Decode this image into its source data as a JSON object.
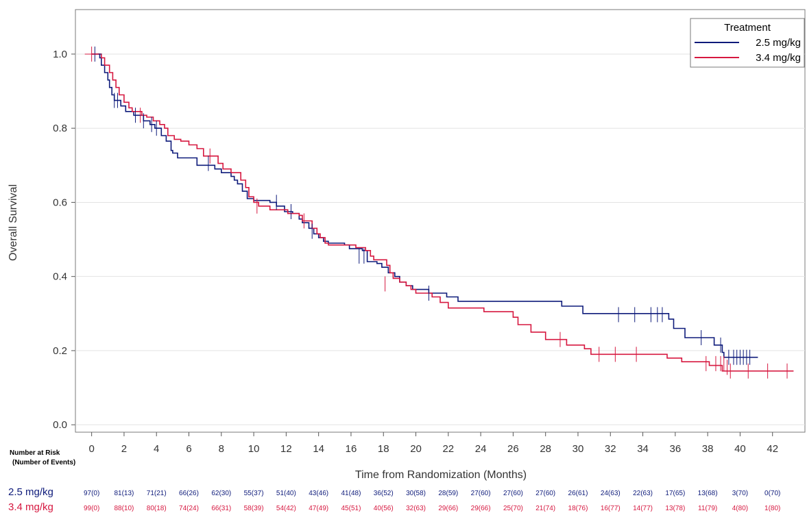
{
  "chart_data": {
    "type": "line",
    "xlabel": "Time from Randomization (Months)",
    "ylabel": "Overall Survival",
    "xlim": [
      -1,
      44
    ],
    "ylim": [
      -0.02,
      1.12
    ],
    "x_ticks": [
      0,
      2,
      4,
      6,
      8,
      10,
      12,
      14,
      16,
      18,
      20,
      22,
      24,
      26,
      28,
      30,
      32,
      34,
      36,
      38,
      40,
      42
    ],
    "y_ticks": [
      0.0,
      0.2,
      0.4,
      0.6,
      0.8,
      1.0
    ],
    "y_tick_labels": [
      "0.0",
      "0.2",
      "0.4",
      "0.6",
      "0.8",
      "1.0"
    ],
    "grid": "horizontal",
    "legend": {
      "title": "Treatment",
      "placement": "top-right"
    },
    "series": [
      {
        "name": "2.5 mg/kg",
        "color": "#0d1a7a",
        "steps": [
          [
            0,
            1.0
          ],
          [
            0.4,
            1.0
          ],
          [
            0.5,
            0.99
          ],
          [
            0.6,
            0.97
          ],
          [
            0.8,
            0.95
          ],
          [
            1.0,
            0.93
          ],
          [
            1.1,
            0.91
          ],
          [
            1.25,
            0.89
          ],
          [
            1.4,
            0.875
          ],
          [
            1.8,
            0.86
          ],
          [
            2.1,
            0.845
          ],
          [
            2.6,
            0.835
          ],
          [
            3.2,
            0.82
          ],
          [
            3.6,
            0.81
          ],
          [
            3.9,
            0.8
          ],
          [
            4.3,
            0.78
          ],
          [
            4.6,
            0.765
          ],
          [
            4.9,
            0.74
          ],
          [
            5.0,
            0.733
          ],
          [
            5.3,
            0.72
          ],
          [
            6.5,
            0.7
          ],
          [
            7.6,
            0.69
          ],
          [
            8.0,
            0.68
          ],
          [
            8.6,
            0.67
          ],
          [
            8.8,
            0.66
          ],
          [
            9.0,
            0.65
          ],
          [
            9.3,
            0.63
          ],
          [
            9.6,
            0.61
          ],
          [
            10.0,
            0.605
          ],
          [
            11.0,
            0.6
          ],
          [
            11.4,
            0.59
          ],
          [
            11.9,
            0.575
          ],
          [
            12.4,
            0.57
          ],
          [
            12.8,
            0.555
          ],
          [
            13.0,
            0.545
          ],
          [
            13.4,
            0.53
          ],
          [
            13.7,
            0.515
          ],
          [
            14.0,
            0.505
          ],
          [
            14.3,
            0.495
          ],
          [
            14.6,
            0.49
          ],
          [
            15.6,
            0.485
          ],
          [
            15.9,
            0.475
          ],
          [
            16.7,
            0.47
          ],
          [
            17.0,
            0.44
          ],
          [
            17.6,
            0.435
          ],
          [
            17.9,
            0.425
          ],
          [
            18.3,
            0.41
          ],
          [
            18.7,
            0.4
          ],
          [
            19.0,
            0.385
          ],
          [
            19.4,
            0.375
          ],
          [
            19.8,
            0.365
          ],
          [
            20.8,
            0.355
          ],
          [
            21.9,
            0.345
          ],
          [
            22.6,
            0.333
          ],
          [
            29.0,
            0.32
          ],
          [
            30.3,
            0.3
          ],
          [
            35.6,
            0.285
          ],
          [
            35.9,
            0.26
          ],
          [
            36.6,
            0.235
          ],
          [
            38.4,
            0.215
          ],
          [
            38.9,
            0.195
          ],
          [
            39.0,
            0.182
          ],
          [
            41.1,
            0.182
          ]
        ],
        "censors": [
          [
            0.2,
            1.0
          ],
          [
            1.4,
            0.875
          ],
          [
            1.6,
            0.875
          ],
          [
            2.7,
            0.835
          ],
          [
            3.2,
            0.82
          ],
          [
            3.7,
            0.81
          ],
          [
            4.0,
            0.8
          ],
          [
            7.2,
            0.705
          ],
          [
            11.4,
            0.6
          ],
          [
            12.3,
            0.575
          ],
          [
            13.6,
            0.522
          ],
          [
            16.5,
            0.455
          ],
          [
            16.8,
            0.455
          ],
          [
            20.8,
            0.355
          ],
          [
            32.5,
            0.297
          ],
          [
            33.5,
            0.297
          ],
          [
            34.5,
            0.297
          ],
          [
            34.9,
            0.297
          ],
          [
            35.2,
            0.297
          ],
          [
            37.6,
            0.235
          ],
          [
            38.8,
            0.215
          ],
          [
            39.3,
            0.182
          ],
          [
            39.6,
            0.182
          ],
          [
            39.8,
            0.182
          ],
          [
            40.0,
            0.182
          ],
          [
            40.2,
            0.182
          ],
          [
            40.4,
            0.182
          ],
          [
            40.6,
            0.182
          ]
        ]
      },
      {
        "name": "3.4 mg/kg",
        "color": "#d6173f",
        "steps": [
          [
            0,
            1.0
          ],
          [
            0.6,
            0.99
          ],
          [
            0.8,
            0.97
          ],
          [
            1.1,
            0.95
          ],
          [
            1.3,
            0.93
          ],
          [
            1.5,
            0.91
          ],
          [
            1.7,
            0.89
          ],
          [
            2.0,
            0.87
          ],
          [
            2.3,
            0.855
          ],
          [
            2.5,
            0.845
          ],
          [
            3.1,
            0.835
          ],
          [
            3.4,
            0.83
          ],
          [
            3.8,
            0.82
          ],
          [
            4.2,
            0.81
          ],
          [
            4.5,
            0.8
          ],
          [
            4.7,
            0.78
          ],
          [
            5.1,
            0.77
          ],
          [
            5.5,
            0.765
          ],
          [
            6.0,
            0.755
          ],
          [
            6.5,
            0.745
          ],
          [
            6.9,
            0.725
          ],
          [
            7.8,
            0.705
          ],
          [
            8.1,
            0.69
          ],
          [
            8.6,
            0.68
          ],
          [
            9.2,
            0.66
          ],
          [
            9.5,
            0.64
          ],
          [
            9.7,
            0.615
          ],
          [
            10.0,
            0.6
          ],
          [
            10.3,
            0.59
          ],
          [
            11.0,
            0.58
          ],
          [
            12.1,
            0.57
          ],
          [
            12.8,
            0.565
          ],
          [
            13.0,
            0.55
          ],
          [
            13.6,
            0.53
          ],
          [
            13.9,
            0.515
          ],
          [
            14.1,
            0.505
          ],
          [
            14.4,
            0.49
          ],
          [
            14.6,
            0.485
          ],
          [
            16.3,
            0.478
          ],
          [
            16.9,
            0.47
          ],
          [
            17.2,
            0.455
          ],
          [
            17.4,
            0.445
          ],
          [
            18.2,
            0.43
          ],
          [
            18.4,
            0.41
          ],
          [
            18.6,
            0.395
          ],
          [
            19.0,
            0.385
          ],
          [
            19.4,
            0.375
          ],
          [
            19.7,
            0.365
          ],
          [
            20.0,
            0.355
          ],
          [
            21.0,
            0.345
          ],
          [
            21.5,
            0.33
          ],
          [
            22.0,
            0.315
          ],
          [
            24.2,
            0.305
          ],
          [
            26.0,
            0.29
          ],
          [
            26.3,
            0.27
          ],
          [
            27.1,
            0.25
          ],
          [
            28.0,
            0.23
          ],
          [
            29.3,
            0.215
          ],
          [
            30.4,
            0.205
          ],
          [
            30.8,
            0.19
          ],
          [
            35.5,
            0.18
          ],
          [
            36.4,
            0.17
          ],
          [
            38.1,
            0.16
          ],
          [
            38.9,
            0.145
          ],
          [
            43.3,
            0.145
          ]
        ],
        "censors": [
          [
            0.0,
            1.0
          ],
          [
            3.0,
            0.835
          ],
          [
            7.3,
            0.725
          ],
          [
            10.2,
            0.59
          ],
          [
            13.1,
            0.55
          ],
          [
            18.1,
            0.38
          ],
          [
            28.9,
            0.23
          ],
          [
            31.3,
            0.19
          ],
          [
            32.3,
            0.19
          ],
          [
            33.6,
            0.19
          ],
          [
            37.9,
            0.165
          ],
          [
            38.5,
            0.165
          ],
          [
            38.8,
            0.165
          ],
          [
            39.0,
            0.165
          ],
          [
            39.2,
            0.155
          ],
          [
            39.4,
            0.145
          ],
          [
            40.5,
            0.145
          ],
          [
            41.7,
            0.145
          ],
          [
            42.9,
            0.145
          ]
        ]
      }
    ]
  },
  "risk_table": {
    "header_line1": "Number at Risk",
    "header_line2": "(Number of Events)",
    "rows": [
      {
        "label": "2.5 mg/kg",
        "color": "#0d1a7a",
        "values": [
          "97(0)",
          "81(13)",
          "71(21)",
          "66(26)",
          "62(30)",
          "55(37)",
          "51(40)",
          "43(46)",
          "41(48)",
          "36(52)",
          "30(58)",
          "28(59)",
          "27(60)",
          "27(60)",
          "27(60)",
          "26(61)",
          "24(63)",
          "22(63)",
          "17(65)",
          "13(68)",
          "3(70)",
          "0(70)"
        ]
      },
      {
        "label": "3.4 mg/kg",
        "color": "#d6173f",
        "values": [
          "99(0)",
          "88(10)",
          "80(18)",
          "74(24)",
          "66(31)",
          "58(39)",
          "54(42)",
          "47(49)",
          "45(51)",
          "40(56)",
          "32(63)",
          "29(66)",
          "29(66)",
          "25(70)",
          "21(74)",
          "18(76)",
          "16(77)",
          "14(77)",
          "13(78)",
          "11(79)",
          "4(80)",
          "1(80)"
        ]
      }
    ]
  }
}
